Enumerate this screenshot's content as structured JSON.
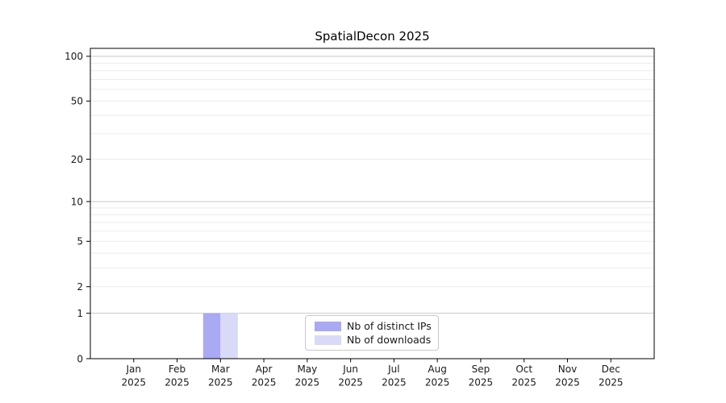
{
  "figure": {
    "background": "#ffffff"
  },
  "chart_data": {
    "type": "bar",
    "title": "SpatialDecon 2025",
    "x_categories": [
      "Jan",
      "Feb",
      "Mar",
      "Apr",
      "May",
      "Jun",
      "Jul",
      "Aug",
      "Sep",
      "Oct",
      "Nov",
      "Dec"
    ],
    "x_year": "2025",
    "xlabel": "",
    "ylabel": "",
    "y_scale": "log1p",
    "ylim": [
      0,
      113
    ],
    "y_labeled_ticks": [
      0,
      1,
      2,
      5,
      10,
      20,
      50,
      100
    ],
    "y_gridlines_major": [
      1,
      10,
      100
    ],
    "y_gridlines_minor": [
      2,
      3,
      4,
      5,
      6,
      7,
      8,
      9,
      20,
      30,
      40,
      50,
      60,
      70,
      80,
      90
    ],
    "grid": true,
    "legend_position": "lower center",
    "series": [
      {
        "name": "Nb of distinct IPs",
        "color": "#a9a9f4",
        "values": [
          0,
          0,
          1,
          0,
          0,
          0,
          0,
          0,
          0,
          0,
          0,
          0
        ]
      },
      {
        "name": "Nb of downloads",
        "color": "#d9d9f8",
        "values": [
          0,
          0,
          1,
          0,
          0,
          0,
          0,
          0,
          0,
          0,
          0,
          0
        ]
      }
    ]
  },
  "colors": {
    "axis": "#000000",
    "text": "#1a1a1a",
    "major_grid": "#c8c8c8",
    "minor_grid": "#ececec",
    "legend_border": "#c8c8c8",
    "legend_bg": "#ffffff"
  }
}
